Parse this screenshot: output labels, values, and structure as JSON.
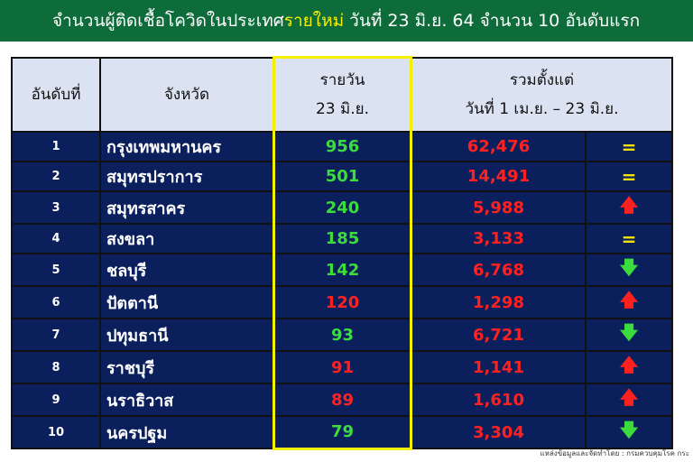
{
  "title": {
    "prefix": "จำนวนผู้ติดเชื้อโควิดในประเทศ",
    "highlight": "รายใหม่",
    "suffix": " วันที่ 23 มิ.ย. 64 จำนวน 10 อันดับแรก"
  },
  "headers": {
    "rank": "อันดับที่",
    "province": "จังหวัด",
    "daily_line1": "รายวัน",
    "daily_line2": "23 มิ.ย.",
    "total_line1": "รวมตั้งแต่",
    "total_line2": "วันที่ 1 เม.ย. – 23 มิ.ย."
  },
  "colors": {
    "green": "#3ddc3d",
    "red": "#ff2020",
    "equal": "#f5e200"
  },
  "rows": [
    {
      "rank": "1",
      "province": "กรุงเทพมหานคร",
      "daily": "956",
      "daily_color": "green",
      "total": "62,476",
      "trend": "equal",
      "trend_glyph": "="
    },
    {
      "rank": "2",
      "province": "สมุทรปราการ",
      "daily": "501",
      "daily_color": "green",
      "total": "14,491",
      "trend": "equal",
      "trend_glyph": "="
    },
    {
      "rank": "3",
      "province": "สมุทรสาคร",
      "daily": "240",
      "daily_color": "green",
      "total": "5,988",
      "trend": "up",
      "trend_glyph": "🡅"
    },
    {
      "rank": "4",
      "province": "สงขลา",
      "daily": "185",
      "daily_color": "green",
      "total": "3,133",
      "trend": "equal",
      "trend_glyph": "="
    },
    {
      "rank": "5",
      "province": "ชลบุรี",
      "daily": "142",
      "daily_color": "green",
      "total": "6,768",
      "trend": "down",
      "trend_glyph": "🡇"
    },
    {
      "rank": "6",
      "province": "ปัตตานี",
      "daily": "120",
      "daily_color": "red",
      "total": "1,298",
      "trend": "up",
      "trend_glyph": "🡅"
    },
    {
      "rank": "7",
      "province": "ปทุมธานี",
      "daily": "93",
      "daily_color": "green",
      "total": "6,721",
      "trend": "down",
      "trend_glyph": "🡇"
    },
    {
      "rank": "8",
      "province": "ราชบุรี",
      "daily": "91",
      "daily_color": "red",
      "total": "1,141",
      "trend": "up",
      "trend_glyph": "🡅"
    },
    {
      "rank": "9",
      "province": "นราธิวาส",
      "daily": "89",
      "daily_color": "red",
      "total": "1,610",
      "trend": "up",
      "trend_glyph": "🡅"
    },
    {
      "rank": "10",
      "province": "นครปฐม",
      "daily": "79",
      "daily_color": "green",
      "total": "3,304",
      "trend": "down",
      "trend_glyph": "🡇"
    }
  ],
  "source": "แหล่งข้อมูลและจัดทำโดย : กรมควบคุมโรค กระ"
}
